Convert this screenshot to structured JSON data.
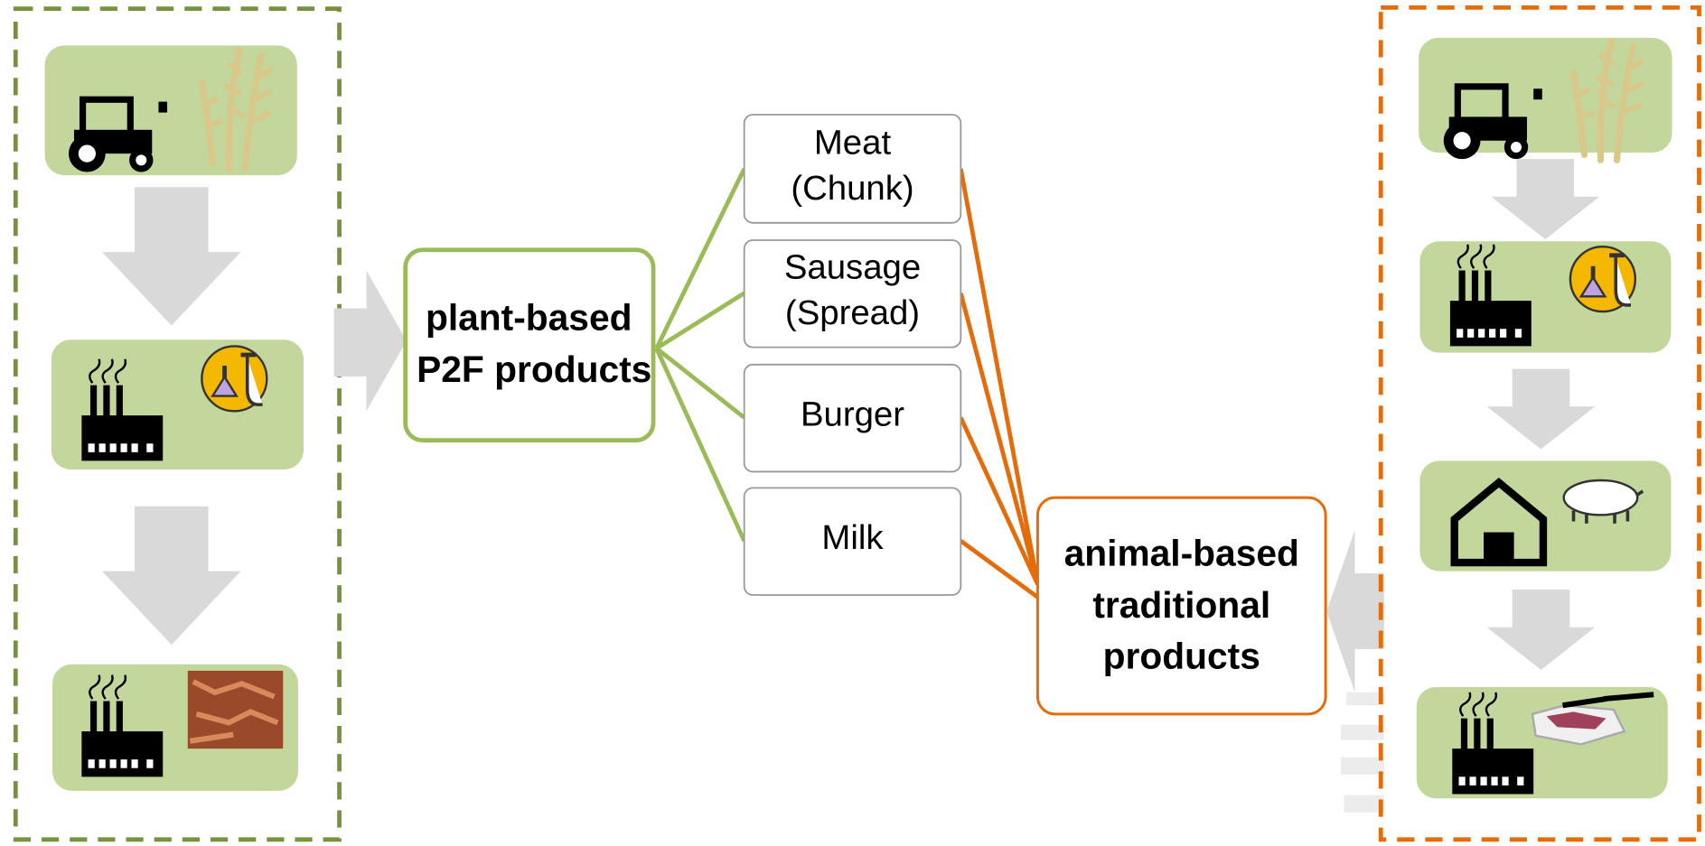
{
  "nodes": [
    {
      "label": [
        "plant-based",
        "P2F products"
      ]
    },
    {
      "label": [
        "Meat",
        "(Chunk)"
      ]
    },
    {
      "label": [
        "Sausage",
        "(Spread)"
      ]
    },
    {
      "label": [
        "Burger"
      ]
    },
    {
      "label": [
        "Milk"
      ]
    },
    {
      "label": [
        "animal-based",
        "traditional",
        "products"
      ]
    }
  ]
}
